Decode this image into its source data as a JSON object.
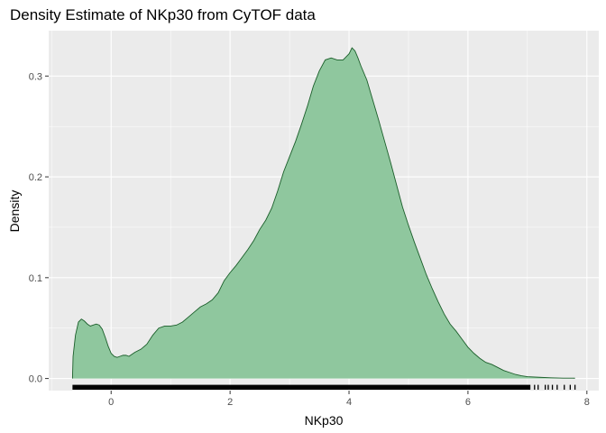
{
  "chart_data": {
    "type": "area",
    "title": "Density Estimate of NKp30 from CyTOF data",
    "xlabel": "NKp30",
    "ylabel": "Density",
    "xlim": [
      -1.05,
      8.2
    ],
    "ylim": [
      -0.012,
      0.345
    ],
    "x_ticks": [
      0,
      2,
      4,
      6,
      8
    ],
    "x_tick_labels": [
      "0",
      "2",
      "4",
      "6",
      "8"
    ],
    "y_ticks": [
      0.0,
      0.1,
      0.2,
      0.3
    ],
    "y_tick_labels": [
      "0.0",
      "0.1",
      "0.2",
      "0.3"
    ],
    "grid": true,
    "panel_background": "#ebebeb",
    "grid_color": "#ffffff",
    "fill_color": "#8fc79e",
    "line_color": "#1b5e2a",
    "rug_color": "#000000",
    "series": [
      {
        "x": [
          -0.65,
          -0.64,
          -0.6,
          -0.55,
          -0.5,
          -0.45,
          -0.4,
          -0.35,
          -0.3,
          -0.25,
          -0.2,
          -0.15,
          -0.1,
          -0.05,
          0.0,
          0.05,
          0.1,
          0.15,
          0.2,
          0.25,
          0.3,
          0.35,
          0.4,
          0.5,
          0.6,
          0.7,
          0.8,
          0.9,
          1.0,
          1.1,
          1.2,
          1.3,
          1.4,
          1.5,
          1.6,
          1.7,
          1.8,
          1.9,
          2.0,
          2.1,
          2.2,
          2.3,
          2.4,
          2.5,
          2.6,
          2.7,
          2.8,
          2.9,
          3.0,
          3.1,
          3.2,
          3.3,
          3.4,
          3.5,
          3.6,
          3.7,
          3.8,
          3.9,
          4.0,
          4.05,
          4.1,
          4.15,
          4.2,
          4.3,
          4.4,
          4.5,
          4.6,
          4.7,
          4.8,
          4.9,
          5.0,
          5.1,
          5.2,
          5.3,
          5.4,
          5.5,
          5.6,
          5.7,
          5.8,
          5.9,
          6.0,
          6.1,
          6.2,
          6.3,
          6.4,
          6.5,
          6.6,
          6.7,
          6.8,
          6.9,
          7.0,
          7.2,
          7.4,
          7.6,
          7.8
        ],
        "y": [
          0.0,
          0.022,
          0.043,
          0.056,
          0.059,
          0.057,
          0.054,
          0.052,
          0.053,
          0.054,
          0.053,
          0.049,
          0.041,
          0.032,
          0.025,
          0.022,
          0.021,
          0.022,
          0.023,
          0.023,
          0.022,
          0.024,
          0.026,
          0.029,
          0.034,
          0.043,
          0.05,
          0.052,
          0.052,
          0.053,
          0.056,
          0.061,
          0.066,
          0.071,
          0.074,
          0.078,
          0.085,
          0.097,
          0.105,
          0.112,
          0.12,
          0.128,
          0.137,
          0.148,
          0.157,
          0.169,
          0.186,
          0.205,
          0.22,
          0.235,
          0.252,
          0.27,
          0.29,
          0.305,
          0.316,
          0.318,
          0.316,
          0.316,
          0.322,
          0.328,
          0.325,
          0.318,
          0.31,
          0.296,
          0.276,
          0.256,
          0.235,
          0.214,
          0.192,
          0.17,
          0.152,
          0.135,
          0.119,
          0.103,
          0.089,
          0.076,
          0.064,
          0.054,
          0.047,
          0.039,
          0.031,
          0.025,
          0.02,
          0.016,
          0.014,
          0.011,
          0.008,
          0.006,
          0.004,
          0.0027,
          0.0018,
          0.0012,
          0.0007,
          0.0004,
          0.0003
        ]
      }
    ],
    "rug_solid_range": [
      -0.65,
      7.05
    ],
    "rug_sparse_x": [
      7.12,
      7.18,
      7.3,
      7.35,
      7.42,
      7.5,
      7.62,
      7.72,
      7.8
    ]
  }
}
